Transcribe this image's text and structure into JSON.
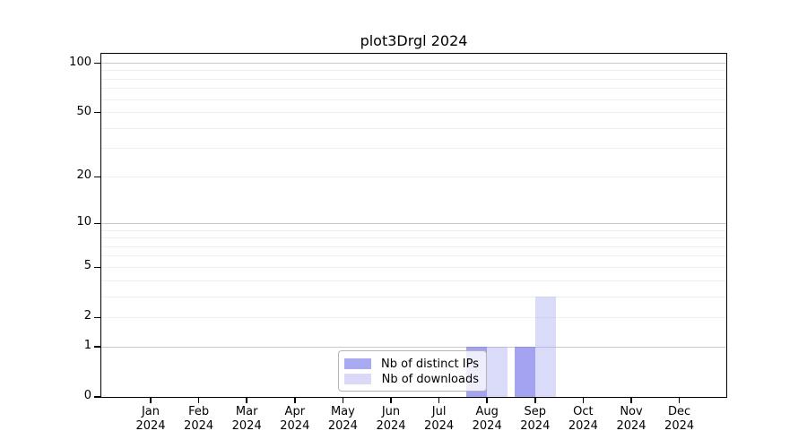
{
  "figure": {
    "background": "#ffffff"
  },
  "chart_data": {
    "type": "bar",
    "title": "plot3Drgl 2024",
    "x_categories": [
      "Jan",
      "Feb",
      "Mar",
      "Apr",
      "May",
      "Jun",
      "Jul",
      "Aug",
      "Sep",
      "Oct",
      "Nov",
      "Dec"
    ],
    "x_year": "2024",
    "series": [
      {
        "name": "Nb of distinct IPs",
        "color": "#a9a9f1",
        "fill": "rgba(113,113,233,0.65)",
        "values": [
          0,
          0,
          0,
          0,
          0,
          0,
          0,
          1,
          1,
          0,
          0,
          0
        ]
      },
      {
        "name": "Nb of downloads",
        "color": "#dadaf8",
        "fill": "rgba(168,168,240,0.42)",
        "values": [
          0,
          0,
          0,
          0,
          0,
          0,
          0,
          1,
          3,
          0,
          0,
          0
        ]
      }
    ],
    "y_scale": "log1p",
    "y_ticks": [
      0,
      1,
      2,
      5,
      10,
      20,
      50,
      100
    ],
    "y_max": 100,
    "ylim": [
      0,
      114
    ],
    "grid": {
      "major_values": [
        1,
        10,
        100
      ],
      "minor_values": [
        2,
        3,
        4,
        5,
        6,
        7,
        8,
        9,
        20,
        30,
        40,
        50,
        60,
        70,
        80,
        90
      ],
      "major_color": "#c9c9c9",
      "minor_color": "#efefef"
    },
    "legend": {
      "position": "bottom-center",
      "entries": [
        "Nb of distinct IPs",
        "Nb of downloads"
      ]
    }
  }
}
